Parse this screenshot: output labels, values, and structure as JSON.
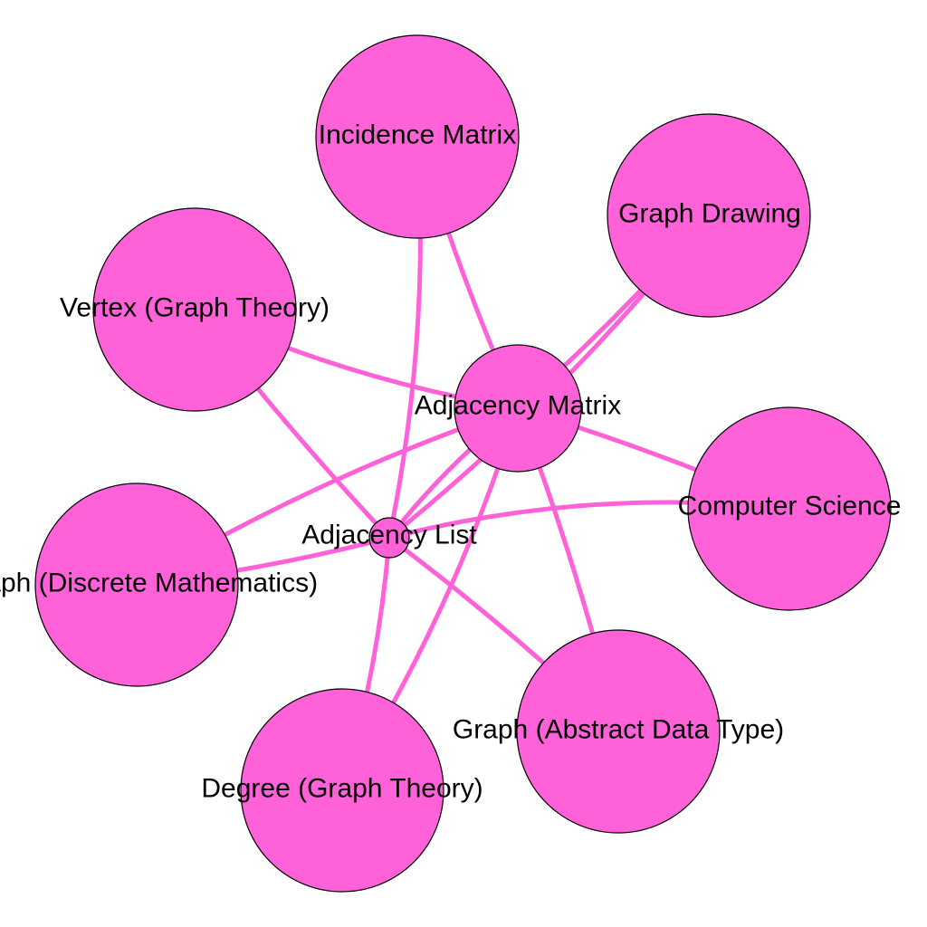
{
  "diagram": {
    "type": "network-graph",
    "colors": {
      "node_fill": "#ff61d8",
      "edge": "#ff61d8",
      "node_stroke": "#000000",
      "label": "#000000"
    },
    "nodes": [
      {
        "id": "adjacency-list",
        "label": "Adjacency List",
        "size": "small"
      },
      {
        "id": "adjacency-matrix",
        "label": "Adjacency Matrix",
        "size": "medium"
      },
      {
        "id": "incidence-matrix",
        "label": "Incidence Matrix",
        "size": "large"
      },
      {
        "id": "graph-drawing",
        "label": "Graph Drawing",
        "size": "large"
      },
      {
        "id": "vertex-graph-theory",
        "label": "Vertex (Graph Theory)",
        "size": "large"
      },
      {
        "id": "computer-science",
        "label": "Computer Science",
        "size": "large"
      },
      {
        "id": "graph-discrete-mathematics",
        "label": "Graph (Discrete Mathematics)",
        "size": "large"
      },
      {
        "id": "graph-abstract-data-type",
        "label": "Graph (Abstract Data Type)",
        "size": "large"
      },
      {
        "id": "degree-graph-theory",
        "label": "Degree (Graph Theory)",
        "size": "large"
      }
    ],
    "edges": [
      {
        "source": "adjacency-list",
        "target": "incidence-matrix"
      },
      {
        "source": "adjacency-list",
        "target": "graph-drawing"
      },
      {
        "source": "adjacency-list",
        "target": "vertex-graph-theory"
      },
      {
        "source": "adjacency-list",
        "target": "computer-science"
      },
      {
        "source": "adjacency-list",
        "target": "graph-discrete-mathematics"
      },
      {
        "source": "adjacency-list",
        "target": "graph-abstract-data-type"
      },
      {
        "source": "adjacency-list",
        "target": "degree-graph-theory"
      },
      {
        "source": "adjacency-list",
        "target": "adjacency-matrix"
      },
      {
        "source": "adjacency-matrix",
        "target": "incidence-matrix"
      },
      {
        "source": "adjacency-matrix",
        "target": "graph-drawing"
      },
      {
        "source": "adjacency-matrix",
        "target": "vertex-graph-theory"
      },
      {
        "source": "adjacency-matrix",
        "target": "computer-science"
      },
      {
        "source": "adjacency-matrix",
        "target": "graph-discrete-mathematics"
      },
      {
        "source": "adjacency-matrix",
        "target": "graph-abstract-data-type"
      },
      {
        "source": "adjacency-matrix",
        "target": "degree-graph-theory"
      }
    ]
  }
}
